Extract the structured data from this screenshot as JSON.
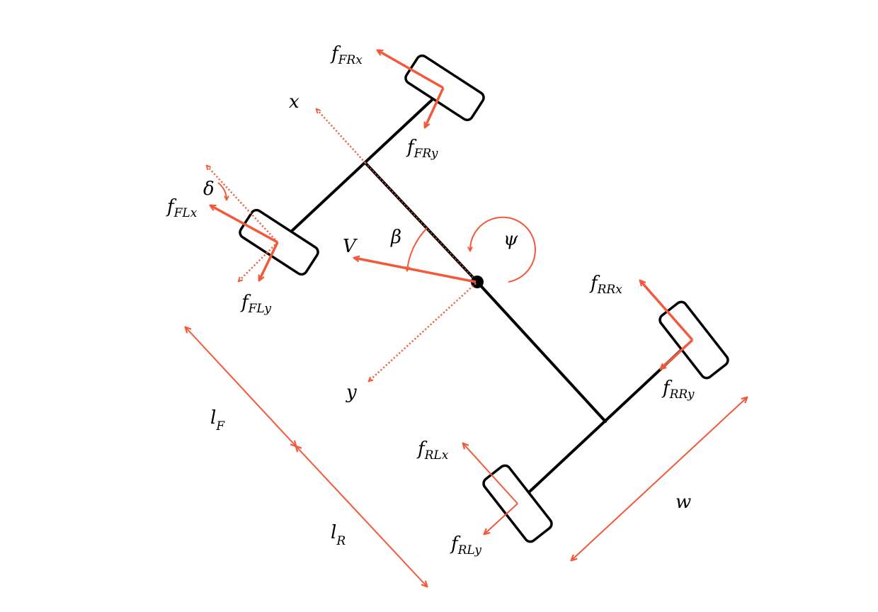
{
  "colors": {
    "accent": "#F4583A",
    "ink": "#000000"
  },
  "labels": {
    "x": {
      "base": "x",
      "sub": ""
    },
    "y": {
      "base": "y",
      "sub": ""
    },
    "V": {
      "base": "V",
      "sub": ""
    },
    "beta": {
      "base": "β",
      "sub": ""
    },
    "psi": {
      "base": "ψ",
      "sub": ""
    },
    "delta": {
      "base": "δ",
      "sub": ""
    },
    "w": {
      "base": "w",
      "sub": ""
    },
    "lF": {
      "base": "l",
      "sub": "F"
    },
    "lR": {
      "base": "l",
      "sub": "R"
    },
    "fFRx": {
      "base": "f",
      "sub": "FRx"
    },
    "fFRy": {
      "base": "f",
      "sub": "FRy"
    },
    "fFLx": {
      "base": "f",
      "sub": "FLx"
    },
    "fFLy": {
      "base": "f",
      "sub": "FLy"
    },
    "fRRx": {
      "base": "f",
      "sub": "RRx"
    },
    "fRRy": {
      "base": "f",
      "sub": "RRy"
    },
    "fRLx": {
      "base": "f",
      "sub": "RLx"
    },
    "fRLy": {
      "base": "f",
      "sub": "RLy"
    }
  }
}
